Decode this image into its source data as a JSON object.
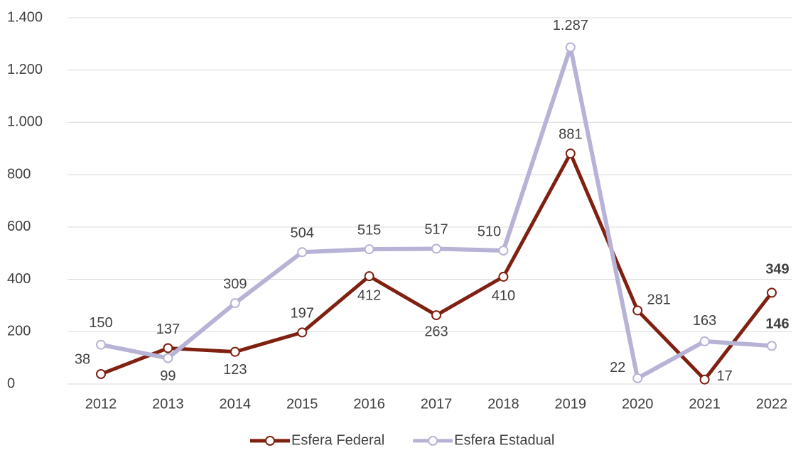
{
  "chart_data": {
    "type": "line",
    "categories": [
      "2012",
      "2013",
      "2014",
      "2015",
      "2016",
      "2017",
      "2018",
      "2019",
      "2020",
      "2021",
      "2022"
    ],
    "series": [
      {
        "name": "Esfera Federal",
        "color": "#7f2010",
        "values": [
          38,
          137,
          123,
          197,
          412,
          263,
          410,
          881,
          281,
          17,
          349
        ],
        "value_labels": [
          "38",
          "137",
          "123",
          "197",
          "412",
          "263",
          "410",
          "881",
          "281",
          "17",
          "349"
        ]
      },
      {
        "name": "Esfera Estadual",
        "color": "#b7b3d6",
        "values": [
          150,
          99,
          309,
          504,
          515,
          517,
          510,
          1287,
          22,
          163,
          146
        ],
        "value_labels": [
          "150",
          "99",
          "309",
          "504",
          "515",
          "517",
          "510",
          "1.287",
          "22",
          "163",
          "146"
        ]
      }
    ],
    "ylim": [
      0,
      1400
    ],
    "yticks": [
      0,
      200,
      400,
      600,
      800,
      {
        "value": 1000,
        "label": "1.000"
      },
      {
        "value": 1200,
        "label": "1.200"
      },
      {
        "value": 1400,
        "label": "1.400"
      }
    ],
    "grid": true,
    "legend": "bottom"
  }
}
